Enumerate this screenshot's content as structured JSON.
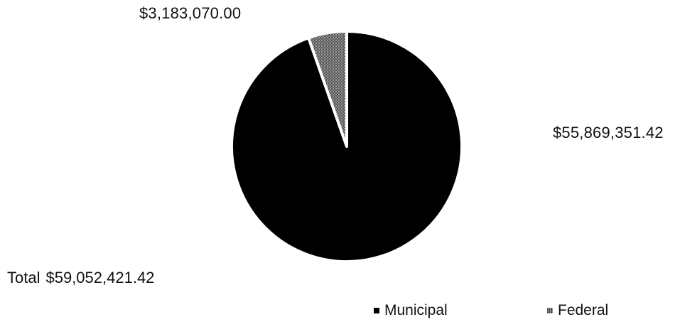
{
  "chart_data": {
    "type": "pie",
    "title": "",
    "series": [
      {
        "name": "Municipal",
        "value": 55869351.42,
        "label": "$55,869,351.42",
        "color": "#000000",
        "pattern": "solid"
      },
      {
        "name": "Federal",
        "value": 3183070.0,
        "label": "$3,183,070.00",
        "color": "#6a6a6a",
        "pattern": "stipple"
      }
    ],
    "total": {
      "label": "Total",
      "value": 59052421.42,
      "value_label": "$59,052,421.42"
    },
    "legend": {
      "placement": "bottom-right",
      "items": [
        "Municipal",
        "Federal"
      ]
    },
    "start_angle": "12 o'clock",
    "direction": "clockwise",
    "slice_border_color": "#ffffff"
  }
}
